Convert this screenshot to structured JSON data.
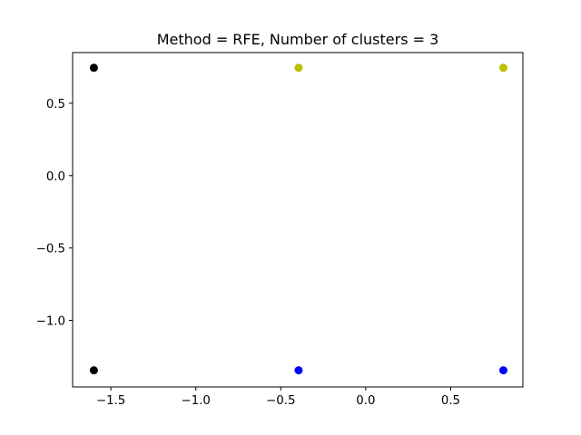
{
  "chart_data": {
    "type": "scatter",
    "title": "Method = RFE, Number of clusters = 3",
    "xlabel": "",
    "ylabel": "",
    "xlim": [
      -1.725,
      0.925
    ],
    "ylim": [
      -1.46,
      0.85
    ],
    "xticks": [
      -1.5,
      -1.0,
      -0.5,
      0.0,
      0.5
    ],
    "xtick_labels": [
      "−1.5",
      "−1.0",
      "−0.5",
      "0.0",
      "0.5"
    ],
    "yticks": [
      0.5,
      0.0,
      -0.5,
      -1.0
    ],
    "ytick_labels": [
      "0.5",
      "0.0",
      "−0.5",
      "−1.0"
    ],
    "grid": false,
    "series": [
      {
        "color": "#000000",
        "points": [
          {
            "x": -1.6,
            "y": 0.745
          },
          {
            "x": -1.6,
            "y": -1.345
          }
        ]
      },
      {
        "color": "#bfbf00",
        "points": [
          {
            "x": -0.395,
            "y": 0.745
          },
          {
            "x": 0.81,
            "y": 0.745
          }
        ]
      },
      {
        "color": "#0000ff",
        "points": [
          {
            "x": -0.395,
            "y": -1.345
          },
          {
            "x": 0.81,
            "y": -1.345
          }
        ]
      }
    ]
  }
}
